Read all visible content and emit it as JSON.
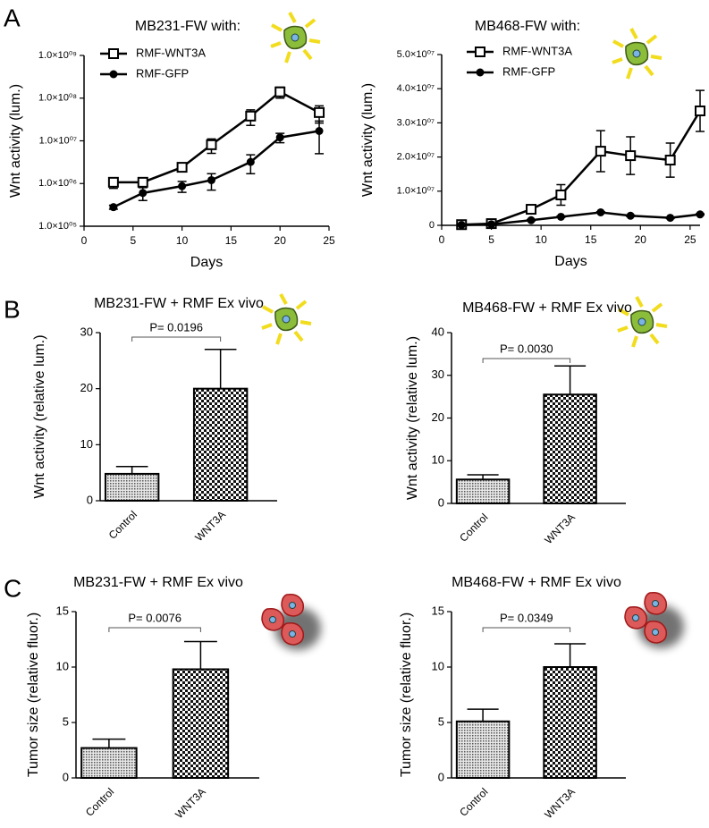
{
  "panel_labels": [
    "A",
    "B",
    "C"
  ],
  "chart_data": [
    {
      "type": "line",
      "title": "MB231-FW with:",
      "x_label": "Days",
      "y_label": "Wnt activity (lum.)",
      "log_y": true,
      "xlim": [
        0,
        25
      ],
      "xticks": [
        0,
        5,
        10,
        15,
        20,
        25
      ],
      "ylim": [
        100000,
        1000000000
      ],
      "yticks": [
        {
          "value": 100000,
          "label": "1.0×10⁰⁵"
        },
        {
          "value": 1000000,
          "label": "1.0×10⁰⁶"
        },
        {
          "value": 10000000,
          "label": "1.0×10⁰⁷"
        },
        {
          "value": 100000000,
          "label": "1.0×10⁰⁸"
        },
        {
          "value": 1000000000,
          "label": "1.0×10⁰⁹"
        }
      ],
      "x": [
        3,
        6,
        10,
        13,
        17,
        20,
        24
      ],
      "series": [
        {
          "name": "RMF-WNT3A",
          "marker": "open-square",
          "color": "#000000",
          "values": [
            1070000,
            1070000,
            2400000,
            8100000,
            38000000,
            140000000,
            46000000
          ],
          "errors": [
            300000,
            200000,
            400000,
            3000000,
            15000000,
            40000000,
            20000000
          ]
        },
        {
          "name": "RMF-GFP",
          "marker": "filled-circle",
          "color": "#000000",
          "values": [
            280000,
            600000,
            870000,
            1200000,
            3200000,
            12000000,
            17000000
          ],
          "errors": [
            30000,
            200000,
            250000,
            500000,
            1500000,
            3000000,
            12000000
          ]
        }
      ]
    },
    {
      "type": "line",
      "title": "MB468-FW with:",
      "x_label": "Days",
      "y_label": "Wnt activity (lum.)",
      "log_y": false,
      "xlim": [
        0,
        26
      ],
      "xticks": [
        0,
        5,
        10,
        15,
        20,
        25
      ],
      "ylim": [
        0,
        50000000
      ],
      "yticks": [
        0,
        {
          "value": 10000000,
          "label": "1.0×10⁰⁷"
        },
        {
          "value": 20000000,
          "label": "2.0×10⁰⁷"
        },
        {
          "value": 30000000,
          "label": "3.0×10⁰⁷"
        },
        {
          "value": 40000000,
          "label": "4.0×10⁰⁷"
        },
        {
          "value": 50000000,
          "label": "5.0×10⁰⁷"
        }
      ],
      "x": [
        2,
        5,
        9,
        12,
        16,
        19,
        23,
        26
      ],
      "series": [
        {
          "name": "RMF-WNT3A",
          "marker": "open-square",
          "color": "#000000",
          "values": [
            200000,
            500000,
            4700000,
            8900000,
            21700000,
            20400000,
            19100000,
            33500000
          ],
          "errors": [
            100000,
            200000,
            500000,
            3000000,
            6000000,
            5500000,
            5000000,
            6000000
          ]
        },
        {
          "name": "RMF-GFP",
          "marker": "filled-circle",
          "color": "#000000",
          "values": [
            100000,
            300000,
            1500000,
            2500000,
            3800000,
            2800000,
            2200000,
            3200000
          ],
          "errors": [
            50000,
            100000,
            200000,
            200000,
            200000,
            200000,
            200000,
            200000
          ]
        }
      ]
    },
    {
      "type": "bar",
      "title": "MB231-FW + RMF Ex vivo",
      "y_label": "Wnt activity (relative lum.)",
      "categories": [
        "Control",
        "WNT3A"
      ],
      "values": [
        4.8,
        20
      ],
      "errors": [
        1.3,
        7
      ],
      "patterns": [
        "dots",
        "checker"
      ],
      "ylim": [
        0,
        30
      ],
      "yticks": [
        0,
        10,
        20,
        30
      ],
      "annotation": "P= 0.0196"
    },
    {
      "type": "bar",
      "title": "MB468-FW + RMF Ex vivo",
      "y_label": "Wnt activity (relative lum.)",
      "categories": [
        "Control",
        "WNT3A"
      ],
      "values": [
        5.6,
        25.5
      ],
      "errors": [
        1.1,
        6.7
      ],
      "patterns": [
        "dots",
        "checker"
      ],
      "ylim": [
        0,
        40
      ],
      "yticks": [
        0,
        10,
        20,
        30,
        40
      ],
      "annotation": "P= 0.0030"
    },
    {
      "type": "bar",
      "title": "MB231-FW + RMF Ex vivo",
      "y_label": "Tumor size (relative fluor.)",
      "categories": [
        "Control",
        "WNT3A"
      ],
      "values": [
        2.7,
        9.8
      ],
      "errors": [
        0.8,
        2.5
      ],
      "patterns": [
        "dots",
        "checker"
      ],
      "ylim": [
        0,
        15
      ],
      "yticks": [
        0,
        5,
        10,
        15
      ],
      "annotation": "P= 0.0076"
    },
    {
      "type": "bar",
      "title": "MB468-FW + RMF Ex vivo",
      "y_label": "Tumor size (relative fluor.)",
      "categories": [
        "Control",
        "WNT3A"
      ],
      "values": [
        5.1,
        10
      ],
      "errors": [
        1.1,
        2.1
      ],
      "patterns": [
        "dots",
        "checker"
      ],
      "ylim": [
        0,
        15
      ],
      "yticks": [
        0,
        5,
        10,
        15
      ],
      "annotation": "P= 0.0349"
    }
  ]
}
